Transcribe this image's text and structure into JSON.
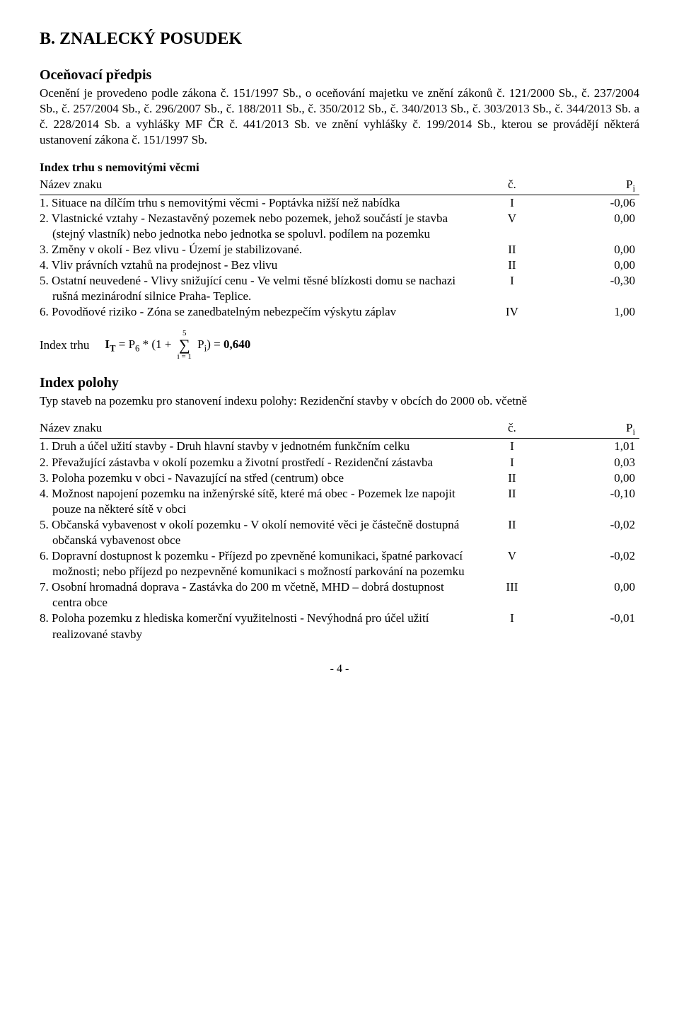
{
  "title_main": "B. ZNALECKÝ POSUDEK",
  "subhead": "Oceňovací předpis",
  "intro": "Ocenění je provedeno podle zákona č. 151/1997 Sb., o oceňování majetku ve znění zákonů č. 121/2000 Sb., č. 237/2004 Sb., č. 257/2004 Sb., č. 296/2007 Sb., č. 188/2011 Sb., č. 350/2012 Sb., č. 340/2013 Sb., č. 303/2013 Sb., č. 344/2013 Sb. a č. 228/2014 Sb. a vyhlášky MF ČR č. 441/2013 Sb. ve znění vyhlášky č. 199/2014 Sb., kterou se provádějí některá ustanovení zákona č. 151/1997 Sb.",
  "table1": {
    "title": "Index trhu s nemovitými věcmi",
    "header": {
      "name": "Název znaku",
      "code": "č.",
      "val": "Pi"
    },
    "rows": [
      {
        "label": "1. Situace na dílčím trhu s nemovitými věcmi - Poptávka nižší než nabídka",
        "code": "I",
        "val": "-0,06"
      },
      {
        "label": "2. Vlastnické vztahy - Nezastavěný pozemek nebo pozemek, jehož součástí je stavba (stejný vlastník) nebo jednotka nebo jednotka se spoluvl. podílem na pozemku",
        "code": "V",
        "val": "0,00"
      },
      {
        "label": "3. Změny v okolí - Bez vlivu - Území je stabilizované.",
        "code": "II",
        "val": "0,00"
      },
      {
        "label": "4. Vliv právních vztahů na prodejnost - Bez vlivu",
        "code": "II",
        "val": "0,00"
      },
      {
        "label": "5. Ostatní neuvedené - Vlivy snižující cenu - Ve velmi těsné blízkosti domu se nachazi rušná mezinárodní silnice Praha- Teplice.",
        "code": "I",
        "val": "-0,30"
      },
      {
        "label": "6. Povodňové riziko - Zóna se zanedbatelným nebezpečím výskytu záplav",
        "code": "IV",
        "val": "1,00"
      }
    ]
  },
  "formula": {
    "prefix": "Index trhu",
    "lhs": "IT = P6 * (1 + ",
    "sigma_top": "5",
    "sigma_bot": "i = 1",
    "rhs": " Pi) = ",
    "result": "0,640"
  },
  "polohy_title": "Index polohy",
  "polohy_intro": "Typ staveb na pozemku pro stanovení indexu polohy: Rezidenční stavby v obcích do 2000 ob. včetně",
  "table2": {
    "header": {
      "name": "Název znaku",
      "code": "č.",
      "val": "Pi"
    },
    "rows": [
      {
        "label": "1. Druh a účel užití stavby - Druh hlavní stavby v jednotném funkčním celku",
        "code": "I",
        "val": "1,01"
      },
      {
        "label": "2. Převažující zástavba v okolí pozemku a životní prostředí - Rezidenční zástavba",
        "code": "I",
        "val": "0,03"
      },
      {
        "label": "3. Poloha pozemku v obci - Navazující na střed (centrum) obce",
        "code": "II",
        "val": "0,00"
      },
      {
        "label": "4. Možnost napojení pozemku na inženýrské sítě, které má obec - Pozemek lze napojit pouze na některé sítě v obci",
        "code": "II",
        "val": "-0,10"
      },
      {
        "label": "5. Občanská vybavenost v okolí pozemku - V okolí nemovité věci je částečně dostupná občanská vybavenost obce",
        "code": "II",
        "val": "-0,02"
      },
      {
        "label": "6. Dopravní dostupnost k pozemku - Příjezd po zpevněné komunikaci, špatné parkovací možnosti; nebo příjezd po nezpevněné komunikaci s možností parkování na pozemku",
        "code": "V",
        "val": "-0,02"
      },
      {
        "label": "7. Osobní hromadná doprava - Zastávka do 200 m včetně, MHD – dobrá dostupnost centra obce",
        "code": "III",
        "val": "0,00"
      },
      {
        "label": "8. Poloha pozemku z hlediska komerční využitelnosti - Nevýhodná pro účel užití realizované stavby",
        "code": "I",
        "val": "-0,01"
      }
    ]
  },
  "page_num": "- 4 -"
}
